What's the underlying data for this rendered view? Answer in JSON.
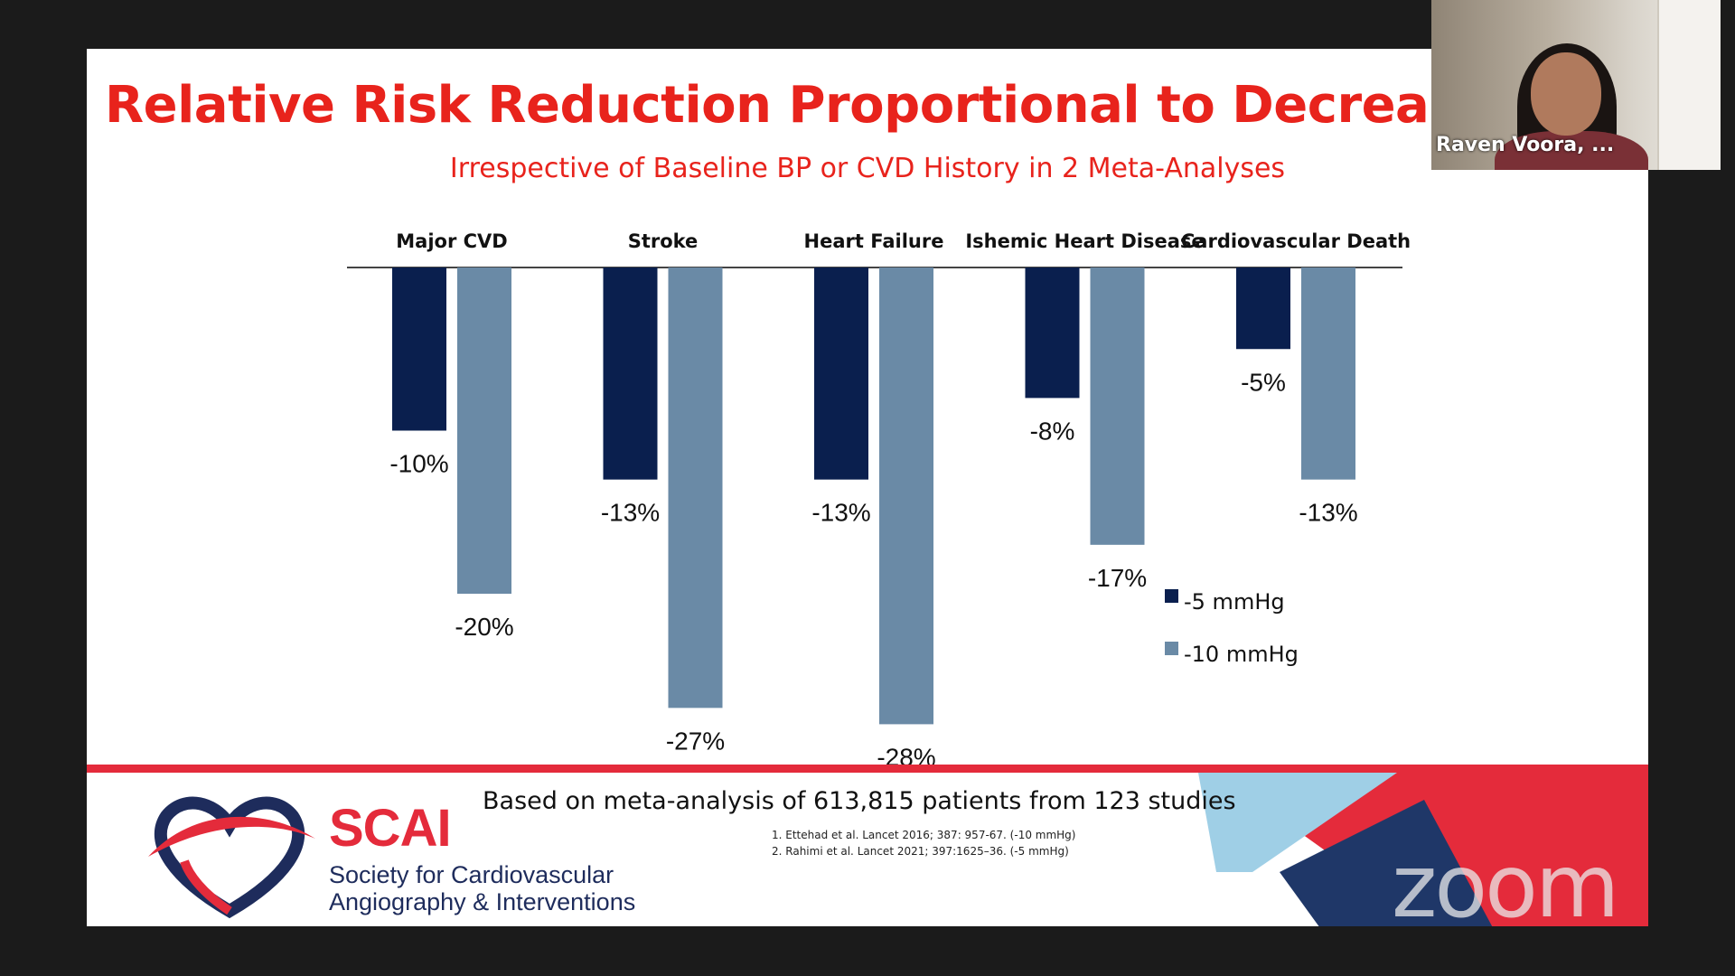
{
  "slide": {
    "title": "Relative Risk Reduction Proportional to Decrease in Of",
    "subtitle": "Irrespective of Baseline BP or CVD History in 2 Meta-Analyses"
  },
  "chart_data": {
    "type": "bar",
    "orientation": "downward",
    "categories": [
      "Major CVD",
      "Stroke",
      "Heart Failure",
      "Ishemic Heart Disease",
      "Cardiovascular Death"
    ],
    "series": [
      {
        "name": "-5 mmHg",
        "color": "#0a1f4e",
        "values": [
          -10,
          -13,
          -13,
          -8,
          -5
        ],
        "labels": [
          "-10%",
          "-13%",
          "-13%",
          "-8%",
          "-5%"
        ]
      },
      {
        "name": "-10 mmHg",
        "color": "#6a8aa6",
        "values": [
          -20,
          -27,
          -28,
          -17,
          -13
        ],
        "labels": [
          "-20%",
          "-27%",
          "-28%",
          "-17%",
          "-13%"
        ]
      }
    ],
    "ylim": [
      -28,
      0
    ],
    "legend": {
      "position": "bottom-right"
    }
  },
  "footer": {
    "summary": "Based on meta-analysis of 613,815 patients from 123 studies",
    "references": [
      "1. Ettehad et al. Lancet 2016; 387: 957-67. (-10 mmHg)",
      "2. Rahimi et al. Lancet 2021; 397:1625–36. (-5 mmHg)"
    ],
    "logo": {
      "name": "SCAI",
      "line1": "Society for Cardiovascular",
      "line2": "Angiography & Interventions"
    }
  },
  "video": {
    "participant_name": "Raven Voora, ..."
  },
  "watermark": "zoom"
}
